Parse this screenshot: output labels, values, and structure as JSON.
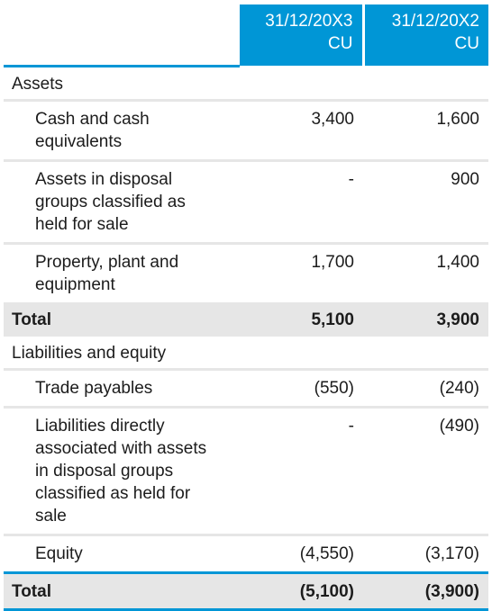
{
  "header": {
    "col1": {
      "date": "31/12/20X3",
      "unit": "CU"
    },
    "col2": {
      "date": "31/12/20X2",
      "unit": "CU"
    }
  },
  "sections": {
    "assets": {
      "title": "Assets",
      "rows": [
        {
          "label": "Cash and cash equivalents",
          "v1": "3,400",
          "v2": "1,600"
        },
        {
          "label": "Assets in disposal groups classified as held for sale",
          "v1": "-",
          "v2": "900"
        },
        {
          "label": "Property, plant and equipment",
          "v1": "1,700",
          "v2": "1,400"
        }
      ],
      "total": {
        "label": "Total",
        "v1": "5,100",
        "v2": "3,900"
      }
    },
    "liabilities": {
      "title": "Liabilities and equity",
      "rows": [
        {
          "label": "Trade payables",
          "v1": "(550)",
          "v2": "(240)"
        },
        {
          "label": "Liabilities directly associated with assets in disposal groups classified as held for sale",
          "v1": "-",
          "v2": "(490)"
        },
        {
          "label": "Equity",
          "v1": "(4,550)",
          "v2": "(3,170)"
        }
      ],
      "total": {
        "label": "Total",
        "v1": "(5,100)",
        "v2": "(3,900)"
      }
    }
  },
  "colors": {
    "accent": "#0096d6",
    "shade": "#e6e6e6"
  }
}
